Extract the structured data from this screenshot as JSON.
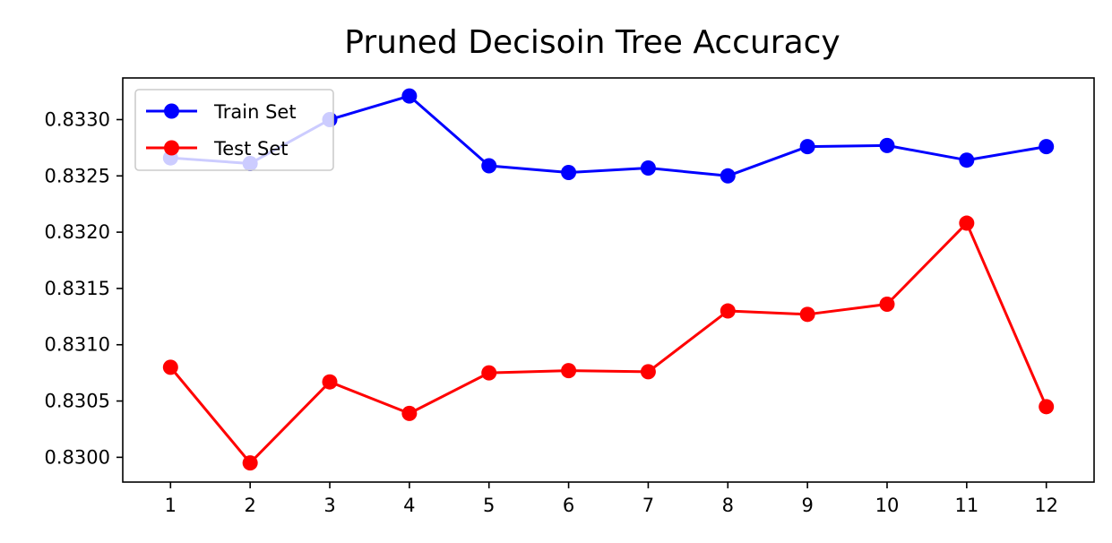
{
  "chart_data": {
    "type": "line",
    "title": "Pruned Decisoin Tree Accuracy",
    "xlabel": "",
    "ylabel": "",
    "x": [
      1,
      2,
      3,
      4,
      5,
      6,
      7,
      8,
      9,
      10,
      11,
      12
    ],
    "x_tick_labels": [
      "1",
      "2",
      "3",
      "4",
      "5",
      "6",
      "7",
      "8",
      "9",
      "10",
      "11",
      "12"
    ],
    "xlim": [
      0.4,
      12.6
    ],
    "ylim": [
      0.82978,
      0.83337
    ],
    "y_ticks": [
      0.83,
      0.8305,
      0.831,
      0.8315,
      0.832,
      0.8325,
      0.833
    ],
    "y_tick_labels": [
      "0.8300",
      "0.8305",
      "0.8310",
      "0.8315",
      "0.8320",
      "0.8325",
      "0.8330"
    ],
    "grid": false,
    "legend_position": "upper-left",
    "series": [
      {
        "name": "Train Set",
        "color": "#0000ff",
        "marker": "circle",
        "values": [
          0.83266,
          0.83261,
          0.833,
          0.83321,
          0.83259,
          0.83253,
          0.83257,
          0.8325,
          0.83276,
          0.83277,
          0.83264,
          0.83276
        ]
      },
      {
        "name": "Test Set",
        "color": "#ff0000",
        "marker": "circle",
        "values": [
          0.8308,
          0.82995,
          0.83067,
          0.83039,
          0.83075,
          0.83077,
          0.83076,
          0.8313,
          0.83127,
          0.83136,
          0.83208,
          0.83045
        ]
      }
    ]
  }
}
